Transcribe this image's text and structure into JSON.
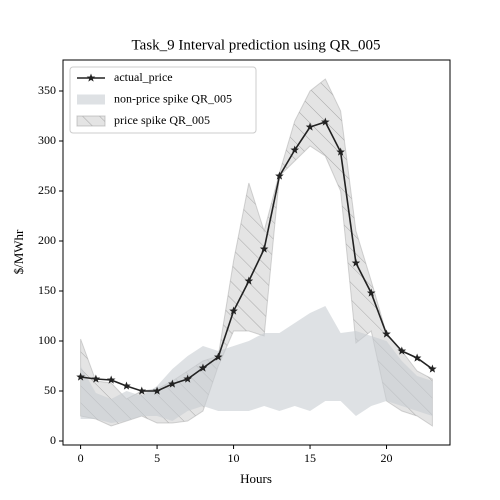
{
  "chart_data": {
    "type": "line",
    "title": "Task_9 Interval prediction using QR_005",
    "x_label": "Hours",
    "y_label": "$/MWhr",
    "x": [
      0,
      1,
      2,
      3,
      4,
      5,
      6,
      7,
      8,
      9,
      10,
      11,
      12,
      13,
      14,
      15,
      16,
      17,
      18,
      19,
      20,
      21,
      22,
      23
    ],
    "series": [
      {
        "name": "actual_price",
        "color": "#222222",
        "marker": "star",
        "values": [
          64,
          62,
          61,
          55,
          50,
          50,
          57,
          62,
          73,
          84,
          130,
          160,
          192,
          265,
          291,
          314,
          319,
          289,
          178,
          148,
          107,
          90,
          83,
          72
        ]
      }
    ],
    "bands": [
      {
        "name": "price spike QR_005",
        "color": "#bbbbbb",
        "hatch": true,
        "lower": [
          25,
          22,
          15,
          20,
          25,
          18,
          18,
          20,
          30,
          75,
          110,
          110,
          105,
          265,
          280,
          295,
          285,
          250,
          98,
          110,
          40,
          30,
          25,
          15
        ],
        "upper": [
          102,
          60,
          58,
          42,
          50,
          52,
          60,
          70,
          80,
          85,
          180,
          258,
          210,
          268,
          320,
          350,
          362,
          330,
          210,
          160,
          107,
          90,
          70,
          62
        ]
      },
      {
        "name": "non-price spike QR_005",
        "color": "#c8cdd2",
        "hatch": false,
        "lower": [
          22,
          22,
          18,
          20,
          25,
          25,
          20,
          30,
          35,
          30,
          30,
          30,
          35,
          30,
          35,
          30,
          40,
          40,
          25,
          35,
          40,
          35,
          30,
          25
        ],
        "upper": [
          75,
          48,
          42,
          50,
          45,
          55,
          72,
          85,
          95,
          90,
          95,
          100,
          108,
          108,
          118,
          128,
          135,
          108,
          110,
          105,
          100,
          80,
          65,
          60
        ]
      }
    ],
    "legend_order": [
      0,
      1,
      0
    ],
    "xlim": [
      -1.15,
      24.15
    ],
    "ylim": [
      -4,
      381
    ],
    "xticks": [
      0,
      5,
      10,
      15,
      20
    ],
    "yticks": [
      0,
      50,
      100,
      150,
      200,
      250,
      300,
      350
    ],
    "legend": "upper left"
  }
}
